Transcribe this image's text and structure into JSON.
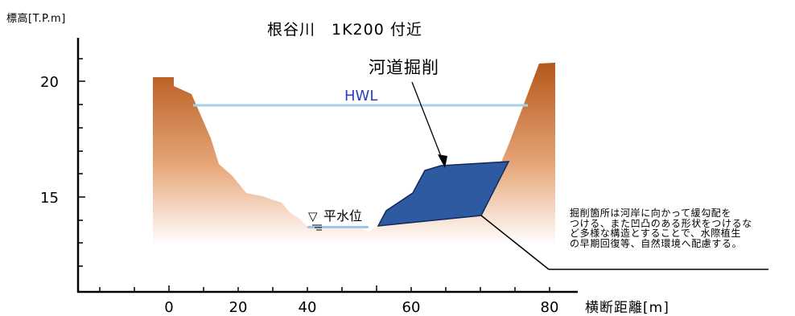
{
  "title": "根谷川　1K200 付近",
  "y_axis_unit": "標高[T.P.m]",
  "x_axis_unit": "横断距離[m]",
  "y_ticks": [
    "20",
    "15"
  ],
  "x_ticks": [
    "0",
    "20",
    "40",
    "60",
    "80"
  ],
  "hwl_label": "HWL",
  "normal_water_label": "平水位",
  "normal_water_symbol": "▽",
  "dredge_label": "河道掘削",
  "note_lines": [
    "掘削箇所は河岸に向かって緩勾配を",
    "つける、また凹凸のある形状をつけるな",
    "ど多様な構造とすることで、水際植生",
    "の早期回復等、自然環境へ配慮する。"
  ],
  "colors": {
    "bank_dark": "#b4581a",
    "bank_light": "#ffffff",
    "dredge_fill": "#2d5aa0",
    "hwl_line": "#a9cfee",
    "hwl_text": "#2a3fc8",
    "water_line": "#7fb1e3"
  }
}
